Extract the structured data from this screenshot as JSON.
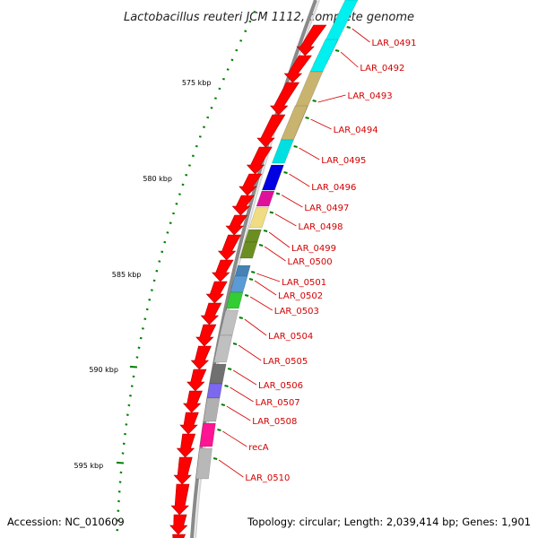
{
  "title": "Lactobacillus reuteri JCM 1112, complete genome",
  "accession": "Accession: NC_010609",
  "topology": "Topology: circular; Length: 2,039,414 bp; Genes: 1,901",
  "ticks": [
    {
      "label": "575 kbp"
    },
    {
      "label": "580 kbp"
    },
    {
      "label": "585 kbp"
    },
    {
      "label": "590 kbp"
    },
    {
      "label": "595 kbp"
    }
  ],
  "genes": [
    {
      "label": "LAR_0491",
      "color": "#00f0f0"
    },
    {
      "label": "LAR_0492",
      "color": "#00f0f0"
    },
    {
      "label": "LAR_0493",
      "color": "#c8b46e"
    },
    {
      "label": "LAR_0494",
      "color": "#c8b46e"
    },
    {
      "label": "LAR_0495",
      "color": "#00e0e0"
    },
    {
      "label": "LAR_0496",
      "color": "#0000e0"
    },
    {
      "label": "LAR_0497",
      "color": "#e0109a"
    },
    {
      "label": "LAR_0498",
      "color": "#f0dc82"
    },
    {
      "label": "LAR_0499",
      "color": "#6b8e23"
    },
    {
      "label": "LAR_0500",
      "color": "#6b8e23"
    },
    {
      "label": "LAR_0501",
      "color": "#4682b4"
    },
    {
      "label": "LAR_0502",
      "color": "#5b9bd5"
    },
    {
      "label": "LAR_0503",
      "color": "#32cd32"
    },
    {
      "label": "LAR_0504",
      "color": "#c0c0c0"
    },
    {
      "label": "LAR_0505",
      "color": "#c0c0c0"
    },
    {
      "label": "LAR_0506",
      "color": "#707070"
    },
    {
      "label": "LAR_0507",
      "color": "#7b68ee"
    },
    {
      "label": "LAR_0508",
      "color": "#b0b0b0"
    },
    {
      "label": "recA",
      "color": "#ff1493"
    },
    {
      "label": "LAR_0510",
      "color": "#b8b8b8"
    }
  ],
  "colors": {
    "cds_arrow": "#ff0000",
    "backbone": "#808080",
    "tick": "#008000",
    "label": "#d40000"
  }
}
